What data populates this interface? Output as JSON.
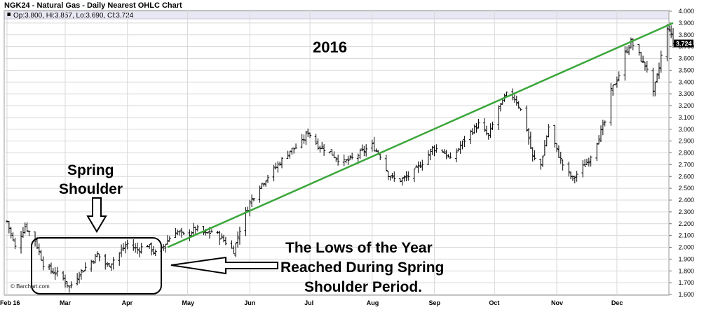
{
  "header": {
    "title": "NGK24 - Natural Gas - Daily Nearest OHLC Chart",
    "ohlc_readout": "Op:3.800, Hi:3.857, Lo:3.690, Cl:3.724"
  },
  "last_price_label": "3.724",
  "credit": "© Barchart.com",
  "annotations": {
    "year": "2016",
    "spring_shoulder_line1": "Spring",
    "spring_shoulder_line2": "Shoulder",
    "lows_line1": "The Lows of the Year",
    "lows_line2": "Reached During Spring",
    "lows_line3": "Shoulder Period."
  },
  "colors": {
    "trendline": "#3aa63a",
    "bars": "#000000",
    "grid": "#d9d9d9",
    "label_box": "#000000"
  },
  "chart_data": {
    "type": "ohlc",
    "title": "NGK24 - Natural Gas - Daily Nearest OHLC Chart",
    "y_axis_side": "right",
    "ylim": [
      1.6,
      4.0
    ],
    "y_ticks": [
      "4.000",
      "3.900",
      "3.800",
      "3.700",
      "3.600",
      "3.500",
      "3.400",
      "3.300",
      "3.200",
      "3.100",
      "3.000",
      "2.900",
      "2.800",
      "2.700",
      "2.600",
      "2.500",
      "2.400",
      "2.300",
      "2.200",
      "2.100",
      "2.000",
      "1.900",
      "1.800",
      "1.700",
      "1.600"
    ],
    "x_ticks": [
      {
        "label": "Feb 16",
        "day": 0
      },
      {
        "label": "Mar",
        "day": 29
      },
      {
        "label": "Apr",
        "day": 60
      },
      {
        "label": "May",
        "day": 90
      },
      {
        "label": "Jun",
        "day": 121
      },
      {
        "label": "Jul",
        "day": 151
      },
      {
        "label": "Aug",
        "day": 182
      },
      {
        "label": "Sep",
        "day": 213
      },
      {
        "label": "Oct",
        "day": 243
      },
      {
        "label": "Nov",
        "day": 274
      },
      {
        "label": "Dec",
        "day": 304
      }
    ],
    "x_max_day": 332,
    "anchors": [
      [
        0,
        2.22
      ],
      [
        4,
        2.0
      ],
      [
        9,
        2.18
      ],
      [
        14,
        2.06
      ],
      [
        18,
        1.86
      ],
      [
        22,
        1.8
      ],
      [
        27,
        1.76
      ],
      [
        31,
        1.66
      ],
      [
        36,
        1.78
      ],
      [
        41,
        1.86
      ],
      [
        45,
        1.94
      ],
      [
        50,
        1.84
      ],
      [
        55,
        1.93
      ],
      [
        60,
        2.03
      ],
      [
        65,
        1.98
      ],
      [
        70,
        2.02
      ],
      [
        75,
        1.93
      ],
      [
        80,
        2.06
      ],
      [
        84,
        2.14
      ],
      [
        89,
        2.09
      ],
      [
        94,
        2.16
      ],
      [
        99,
        2.11
      ],
      [
        103,
        2.14
      ],
      [
        108,
        2.06
      ],
      [
        113,
        1.97
      ],
      [
        117,
        2.21
      ],
      [
        121,
        2.38
      ],
      [
        126,
        2.52
      ],
      [
        131,
        2.62
      ],
      [
        136,
        2.72
      ],
      [
        141,
        2.82
      ],
      [
        146,
        2.86
      ],
      [
        150,
        2.98
      ],
      [
        155,
        2.86
      ],
      [
        160,
        2.82
      ],
      [
        164,
        2.76
      ],
      [
        168,
        2.72
      ],
      [
        173,
        2.76
      ],
      [
        178,
        2.82
      ],
      [
        182,
        2.86
      ],
      [
        186,
        2.78
      ],
      [
        190,
        2.62
      ],
      [
        194,
        2.56
      ],
      [
        198,
        2.58
      ],
      [
        203,
        2.64
      ],
      [
        208,
        2.74
      ],
      [
        212,
        2.84
      ],
      [
        217,
        2.82
      ],
      [
        221,
        2.74
      ],
      [
        226,
        2.86
      ],
      [
        230,
        2.96
      ],
      [
        235,
        3.04
      ],
      [
        240,
        2.94
      ],
      [
        245,
        3.18
      ],
      [
        250,
        3.32
      ],
      [
        254,
        3.24
      ],
      [
        258,
        3.08
      ],
      [
        262,
        2.76
      ],
      [
        266,
        2.7
      ],
      [
        270,
        3.02
      ],
      [
        274,
        2.82
      ],
      [
        278,
        2.66
      ],
      [
        282,
        2.58
      ],
      [
        286,
        2.66
      ],
      [
        290,
        2.74
      ],
      [
        294,
        2.9
      ],
      [
        298,
        3.06
      ],
      [
        301,
        3.32
      ],
      [
        305,
        3.46
      ],
      [
        308,
        3.64
      ],
      [
        311,
        3.74
      ],
      [
        314,
        3.66
      ],
      [
        317,
        3.56
      ],
      [
        320,
        3.5
      ],
      [
        322,
        3.3
      ],
      [
        325,
        3.52
      ],
      [
        328,
        3.82
      ],
      [
        330,
        3.86
      ],
      [
        332,
        3.72
      ]
    ],
    "trendline": {
      "start": {
        "day": 80,
        "price": 2.0
      },
      "end": {
        "day": 332,
        "price": 3.9
      }
    },
    "last": {
      "open": 3.8,
      "high": 3.857,
      "low": 3.69,
      "close": 3.724
    }
  }
}
